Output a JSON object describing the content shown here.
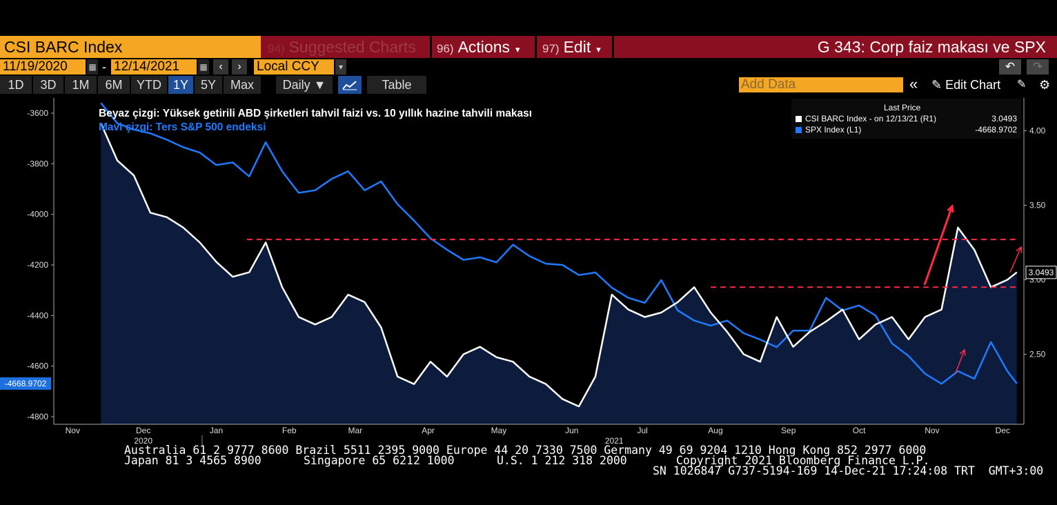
{
  "header": {
    "security": "CSI BARC Index",
    "suggested_num": "94)",
    "suggested_label": "Suggested Charts",
    "actions_num": "96)",
    "actions_label": "Actions",
    "edit_num": "97)",
    "edit_label": "Edit",
    "chart_title": "G 343: Corp faiz makası ve SPX",
    "caret": "▾"
  },
  "range": {
    "start": "11/19/2020",
    "dash": "-",
    "end": "12/14/2021",
    "currency": "Local CCY",
    "prev": "‹",
    "next": "›",
    "cal": "▦",
    "undo": "↶",
    "redo": "↷"
  },
  "toolbar": {
    "timeframes": [
      "1D",
      "3D",
      "1M",
      "6M",
      "YTD",
      "1Y",
      "5Y",
      "Max"
    ],
    "selected": "1Y",
    "frequency": "Daily ▼",
    "table_label": "Table",
    "add_data_placeholder": "Add Data",
    "collapse": "«",
    "edit_chart": "✎ Edit Chart",
    "icons": [
      "chart-line-icon",
      "edit-icon",
      "settings-icon"
    ]
  },
  "colors": {
    "white_line": "#ffffff",
    "blue_line": "#1e7bff",
    "fill": "#0d1b3d",
    "dashed": "#ff2a45",
    "arrow": "#ff2a45"
  },
  "chart_data": {
    "type": "line",
    "annotation_white": "Beyaz çizgi: Yüksek getirili ABD şirketleri tahvil faizi vs. 10 yıllık hazine tahvili makası",
    "annotation_blue": "Mavi çizgi: Ters S&P 500 endeksi",
    "legend_header": "Last Price",
    "legend": [
      {
        "name": "CSI BARC Index - on 12/13/21 (R1)",
        "value": "3.0493",
        "color": "#ffffff"
      },
      {
        "name": "SPX Index (L1)",
        "value": "-4668.9702",
        "color": "#1e7bff"
      }
    ],
    "x_ticks": [
      "Nov",
      "Dec",
      "Jan",
      "Feb",
      "Mar",
      "Apr",
      "May",
      "Jun",
      "Jul",
      "Aug",
      "Sep",
      "Oct",
      "Nov",
      "Dec"
    ],
    "x_years": [
      "2020",
      "2021"
    ],
    "y_left_ticks": [
      "-3600",
      "-3800",
      "-4000",
      "-4200",
      "-4400",
      "-4600",
      "-4800"
    ],
    "y_left_range": [
      -4830,
      -3540
    ],
    "y_right_ticks": [
      "4.00",
      "3.50",
      "3.00",
      "2.50"
    ],
    "y_right_range": [
      2.03,
      4.22
    ],
    "last_left_label": "-4668.9702",
    "last_right_label": "3.0493",
    "dates": [
      "2020-11-19",
      "2020-11-26",
      "2020-12-03",
      "2020-12-10",
      "2020-12-17",
      "2020-12-24",
      "2020-12-31",
      "2021-01-07",
      "2021-01-14",
      "2021-01-21",
      "2021-01-28",
      "2021-02-04",
      "2021-02-11",
      "2021-02-18",
      "2021-02-25",
      "2021-03-04",
      "2021-03-11",
      "2021-03-18",
      "2021-03-25",
      "2021-04-01",
      "2021-04-08",
      "2021-04-15",
      "2021-04-22",
      "2021-04-29",
      "2021-05-06",
      "2021-05-13",
      "2021-05-20",
      "2021-05-27",
      "2021-06-03",
      "2021-06-10",
      "2021-06-17",
      "2021-06-24",
      "2021-07-01",
      "2021-07-08",
      "2021-07-15",
      "2021-07-22",
      "2021-07-29",
      "2021-08-05",
      "2021-08-12",
      "2021-08-19",
      "2021-08-26",
      "2021-09-02",
      "2021-09-09",
      "2021-09-16",
      "2021-09-23",
      "2021-09-30",
      "2021-10-07",
      "2021-10-14",
      "2021-10-21",
      "2021-10-28",
      "2021-11-04",
      "2021-11-11",
      "2021-11-18",
      "2021-11-25",
      "2021-12-02",
      "2021-12-09",
      "2021-12-13"
    ],
    "series": [
      {
        "name": "SPX Index (L1)",
        "axis": "left",
        "values": [
          -3560,
          -3640,
          -3665,
          -3680,
          -3705,
          -3735,
          -3756,
          -3805,
          -3795,
          -3850,
          -3715,
          -3830,
          -3915,
          -3905,
          -3860,
          -3830,
          -3905,
          -3870,
          -3960,
          -4025,
          -4095,
          -4140,
          -4180,
          -4170,
          -4190,
          -4120,
          -4165,
          -4195,
          -4200,
          -4240,
          -4230,
          -4290,
          -4330,
          -4350,
          -4260,
          -4380,
          -4420,
          -4440,
          -4420,
          -4470,
          -4495,
          -4525,
          -4460,
          -4460,
          -4330,
          -4380,
          -4360,
          -4400,
          -4510,
          -4560,
          -4630,
          -4670,
          -4620,
          -4650,
          -4505,
          -4620,
          -4669
        ]
      },
      {
        "name": "CSI BARC Index - on 12/13/21 (R1)",
        "axis": "right",
        "values": [
          4.05,
          3.8,
          3.7,
          3.45,
          3.42,
          3.35,
          3.25,
          3.12,
          3.02,
          3.05,
          3.25,
          2.95,
          2.75,
          2.7,
          2.75,
          2.9,
          2.85,
          2.68,
          2.35,
          2.3,
          2.45,
          2.35,
          2.5,
          2.55,
          2.48,
          2.45,
          2.35,
          2.3,
          2.2,
          2.15,
          2.35,
          2.9,
          2.8,
          2.75,
          2.78,
          2.85,
          2.95,
          2.78,
          2.65,
          2.5,
          2.45,
          2.75,
          2.55,
          2.65,
          2.72,
          2.8,
          2.6,
          2.7,
          2.75,
          2.6,
          2.75,
          2.8,
          3.35,
          3.2,
          2.95,
          3.0,
          3.05
        ]
      }
    ]
  },
  "footer": {
    "line1": "Australia 61 2 9777 8600 Brazil 5511 2395 9000 Europe 44 20 7330 7500 Germany 49 69 9204 1210 Hong Kong 852 2977 6000",
    "line2a": "Japan 81 3 4565 8900",
    "line2b": "Singapore 65 6212 1000",
    "line2c": "U.S. 1 212 318 2000",
    "line2d": "Copyright 2021 Bloomberg Finance L.P.",
    "line3": "SN 1026847 G737-5194-169 14-Dec-21 17:24:08 TRT  GMT+3:00"
  }
}
